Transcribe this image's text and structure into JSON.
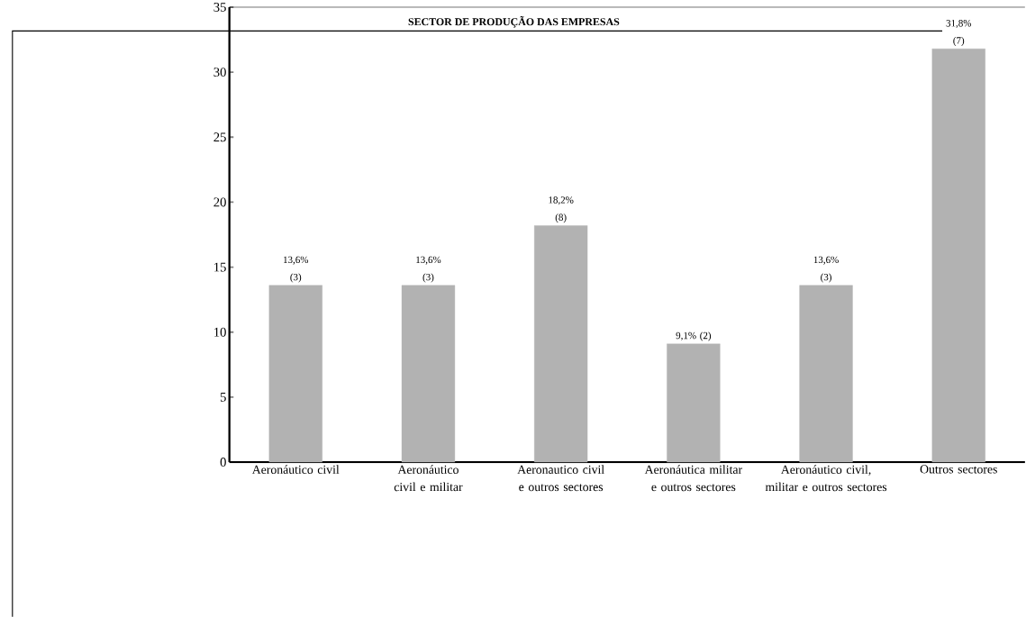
{
  "chart_data": {
    "type": "bar",
    "title": "SECTOR DE PRODUÇÃO DAS EMPRESAS",
    "categories": [
      "Aeronáutico civil",
      "Aeronáutico civil e militar",
      "Aeronautico civil e outros sectores",
      "Aeronáutica militar e outros sectores",
      "Aeronáutico civil, militar e outros sectores",
      "Outros sectores"
    ],
    "values": [
      13.6,
      13.6,
      18.2,
      9.1,
      13.6,
      31.8
    ],
    "value_labels": [
      "13,6% (3)",
      "13,6% (3)",
      "18,2% (8)",
      "9,1% (2)",
      "13,6% (3)",
      "31,8% (7)"
    ],
    "color": "#b2b2b2",
    "ylim": [
      0,
      35
    ],
    "yticks": [
      0,
      5,
      10,
      15,
      20,
      25,
      30,
      35
    ]
  }
}
